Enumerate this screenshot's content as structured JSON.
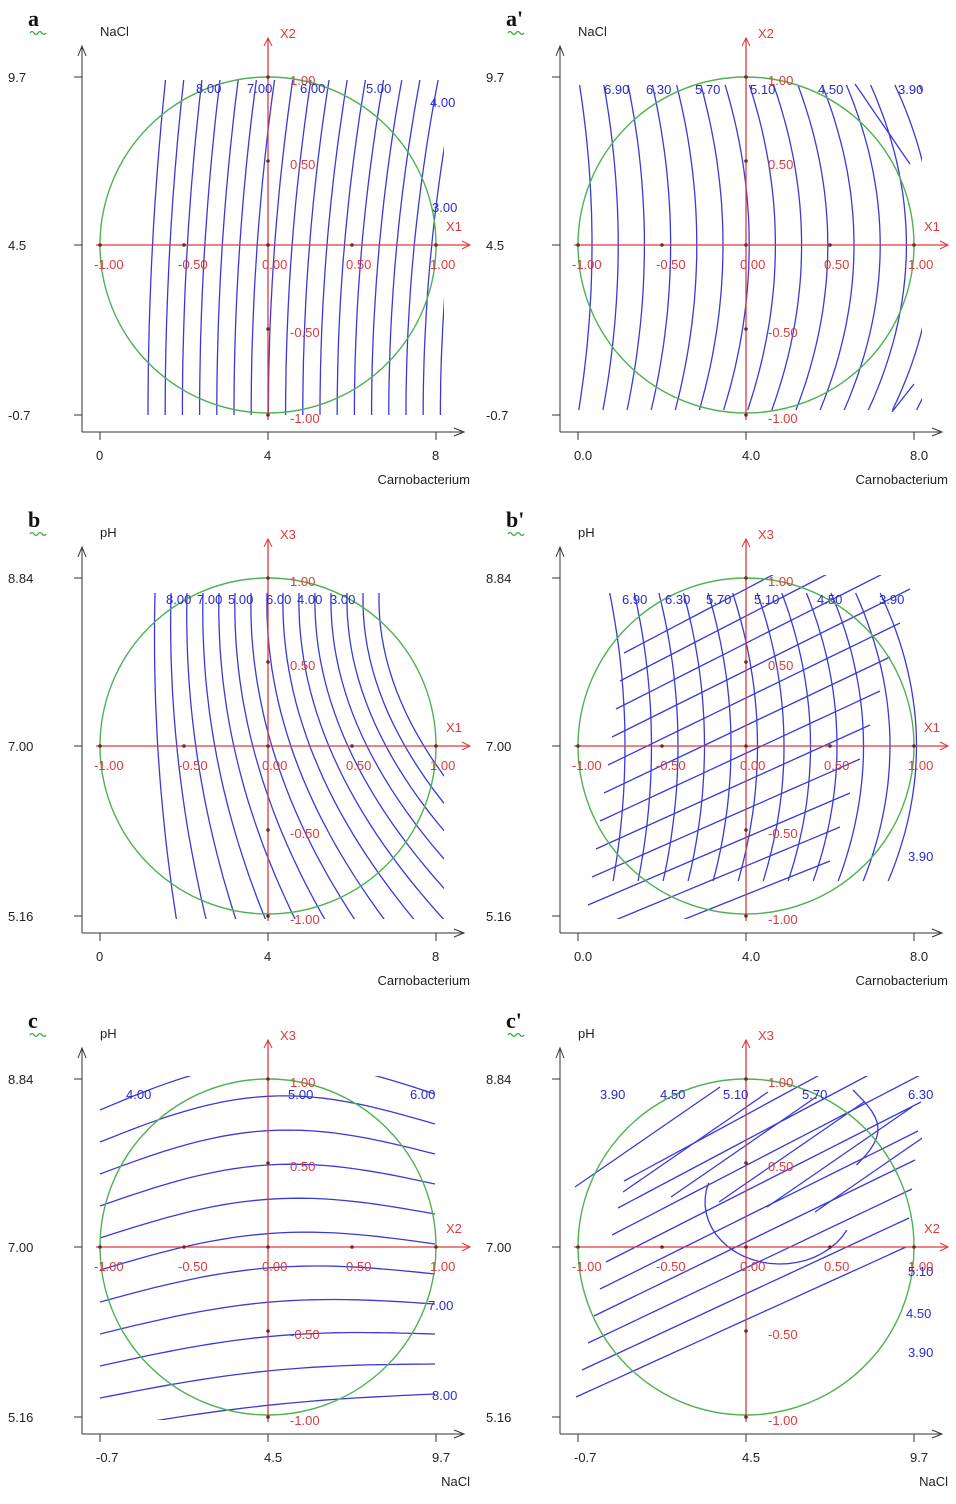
{
  "panels": [
    {
      "label": "a",
      "ylabel": "NaCl",
      "xlabel": "Carnobacterium",
      "yticks": [
        "9.7",
        "4.5",
        "-0.7"
      ],
      "xticks": [
        "0",
        "4",
        "8"
      ],
      "h_axis_name": "X1",
      "v_axis_name": "X2",
      "h_coded": [
        "-1.00",
        "-0.50",
        "0.00",
        "0.50",
        "1.00"
      ],
      "v_coded": [
        "1.00",
        "0.50",
        "-0.50",
        "-1.00"
      ],
      "levels": [
        "8.00",
        "7.00",
        "6.00",
        "5.00",
        "4.00",
        "3.00"
      ]
    },
    {
      "label": "a'",
      "ylabel": "NaCl",
      "xlabel": "Carnobacterium",
      "yticks": [
        "9.7",
        "4.5",
        "-0.7"
      ],
      "xticks": [
        "0.0",
        "4.0",
        "8.0"
      ],
      "h_axis_name": "X1",
      "v_axis_name": "X2",
      "h_coded": [
        "-1.00",
        "-0.50",
        "0.00",
        "0.50",
        "1.00"
      ],
      "v_coded": [
        "1.00",
        "0.50",
        "-0.50",
        "-1.00"
      ],
      "levels": [
        "6.90",
        "6.30",
        "5.70",
        "5.10",
        "4.50",
        "3.90"
      ]
    },
    {
      "label": "b",
      "ylabel": "pH",
      "xlabel": "Carnobacterium",
      "yticks": [
        "8.84",
        "7.00",
        "5.16"
      ],
      "xticks": [
        "0",
        "4",
        "8"
      ],
      "h_axis_name": "X1",
      "v_axis_name": "X3",
      "h_coded": [
        "-1.00",
        "-0.50",
        "0.00",
        "0.50",
        "1.00"
      ],
      "v_coded": [
        "1.00",
        "0.50",
        "-0.50",
        "-1.00"
      ],
      "levels": [
        "8.00",
        "7.00",
        "5.00",
        "6.00",
        "4.00",
        "3.00"
      ]
    },
    {
      "label": "b'",
      "ylabel": "pH",
      "xlabel": "Carnobacterium",
      "yticks": [
        "8.84",
        "7.00",
        "5.16"
      ],
      "xticks": [
        "0.0",
        "4.0",
        "8.0"
      ],
      "h_axis_name": "X1",
      "v_axis_name": "X3",
      "h_coded": [
        "-1.00",
        "-0.50",
        "0.00",
        "0.50",
        "1.00"
      ],
      "v_coded": [
        "1.00",
        "0.50",
        "-0.50",
        "-1.00"
      ],
      "levels": [
        "6.90",
        "6.30",
        "5.70",
        "5.10",
        "4.50",
        "3.90",
        "3.90"
      ]
    },
    {
      "label": "c",
      "ylabel": "pH",
      "xlabel": "NaCl",
      "yticks": [
        "8.84",
        "7.00",
        "5.16"
      ],
      "xticks": [
        "-0.7",
        "4.5",
        "9.7"
      ],
      "h_axis_name": "X2",
      "v_axis_name": "X3",
      "h_coded": [
        "-1.00",
        "-0.50",
        "0.00",
        "0.50",
        "1.00"
      ],
      "v_coded": [
        "1.00",
        "0.50",
        "-0.50",
        "-1.00"
      ],
      "levels": [
        "4.00",
        "5.00",
        "6.00",
        "7.00",
        "8.00"
      ]
    },
    {
      "label": "c'",
      "ylabel": "pH",
      "xlabel": "NaCl",
      "yticks": [
        "8.84",
        "7.00",
        "5.16"
      ],
      "xticks": [
        "-0.7",
        "4.5",
        "9.7"
      ],
      "h_axis_name": "X2",
      "v_axis_name": "X3",
      "h_coded": [
        "-1.00",
        "-0.50",
        "0.00",
        "0.50",
        "1.00"
      ],
      "v_coded": [
        "1.00",
        "0.50",
        "-0.50",
        "-1.00"
      ],
      "levels": [
        "3.90",
        "4.50",
        "5.10",
        "5.70",
        "6.30",
        "5.10",
        "4.50",
        "3.90"
      ]
    }
  ],
  "chart_data": [
    {
      "type": "contour",
      "panel": "a",
      "x": {
        "label": "Carnobacterium",
        "range": [
          0,
          8
        ],
        "ticks": [
          0,
          4,
          8
        ]
      },
      "y": {
        "label": "NaCl",
        "range": [
          -0.7,
          9.7
        ],
        "ticks": [
          -0.7,
          4.5,
          9.7
        ]
      },
      "coded_axes": {
        "horizontal": "X1",
        "vertical": "X2",
        "range": [
          -1,
          1
        ]
      },
      "design_region": "circle",
      "contour_levels": [
        8.0,
        7.0,
        6.0,
        5.0,
        4.0,
        3.0
      ],
      "colors": {
        "contour": "#3a3ad6",
        "coded_axes": "#e0393b",
        "circle": "#4fb24f"
      }
    },
    {
      "type": "contour",
      "panel": "a'",
      "x": {
        "label": "Carnobacterium",
        "range": [
          0,
          8
        ],
        "ticks": [
          0.0,
          4.0,
          8.0
        ]
      },
      "y": {
        "label": "NaCl",
        "range": [
          -0.7,
          9.7
        ],
        "ticks": [
          -0.7,
          4.5,
          9.7
        ]
      },
      "coded_axes": {
        "horizontal": "X1",
        "vertical": "X2",
        "range": [
          -1,
          1
        ]
      },
      "design_region": "circle",
      "contour_levels": [
        6.9,
        6.3,
        5.7,
        5.1,
        4.5,
        3.9
      ]
    },
    {
      "type": "contour",
      "panel": "b",
      "x": {
        "label": "Carnobacterium",
        "range": [
          0,
          8
        ],
        "ticks": [
          0,
          4,
          8
        ]
      },
      "y": {
        "label": "pH",
        "range": [
          5.16,
          8.84
        ],
        "ticks": [
          5.16,
          7.0,
          8.84
        ]
      },
      "coded_axes": {
        "horizontal": "X1",
        "vertical": "X3",
        "range": [
          -1,
          1
        ]
      },
      "design_region": "circle",
      "contour_levels": [
        8.0,
        7.0,
        6.0,
        5.0,
        4.0,
        3.0
      ]
    },
    {
      "type": "contour",
      "panel": "b'",
      "x": {
        "label": "Carnobacterium",
        "range": [
          0,
          8
        ],
        "ticks": [
          0.0,
          4.0,
          8.0
        ]
      },
      "y": {
        "label": "pH",
        "range": [
          5.16,
          8.84
        ],
        "ticks": [
          5.16,
          7.0,
          8.84
        ]
      },
      "coded_axes": {
        "horizontal": "X1",
        "vertical": "X3",
        "range": [
          -1,
          1
        ]
      },
      "design_region": "circle",
      "contour_levels": [
        6.9,
        6.3,
        5.7,
        5.1,
        4.5,
        3.9
      ]
    },
    {
      "type": "contour",
      "panel": "c",
      "x": {
        "label": "NaCl",
        "range": [
          -0.7,
          9.7
        ],
        "ticks": [
          -0.7,
          4.5,
          9.7
        ]
      },
      "y": {
        "label": "pH",
        "range": [
          5.16,
          8.84
        ],
        "ticks": [
          5.16,
          7.0,
          8.84
        ]
      },
      "coded_axes": {
        "horizontal": "X2",
        "vertical": "X3",
        "range": [
          -1,
          1
        ]
      },
      "design_region": "circle",
      "contour_levels": [
        4.0,
        5.0,
        6.0,
        7.0,
        8.0
      ]
    },
    {
      "type": "contour",
      "panel": "c'",
      "x": {
        "label": "NaCl",
        "range": [
          -0.7,
          9.7
        ],
        "ticks": [
          -0.7,
          4.5,
          9.7
        ]
      },
      "y": {
        "label": "pH",
        "range": [
          5.16,
          8.84
        ],
        "ticks": [
          5.16,
          7.0,
          8.84
        ]
      },
      "coded_axes": {
        "horizontal": "X2",
        "vertical": "X3",
        "range": [
          -1,
          1
        ]
      },
      "design_region": "circle",
      "contour_levels": [
        3.9,
        4.5,
        5.1,
        5.7,
        6.3
      ]
    }
  ]
}
